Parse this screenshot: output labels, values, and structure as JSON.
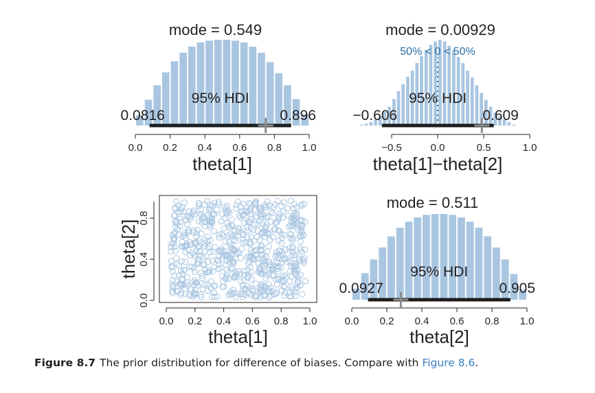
{
  "caption": {
    "label": "Figure 8.7",
    "text": "The prior distribution for difference of biases. Compare with ",
    "ref": "Figure 8.6",
    "end": "."
  },
  "colors": {
    "bar": "#a9c6e1",
    "hdi": "#1d1d1d",
    "mark": "#8a8a8a",
    "text": "#231f20",
    "compare": "#2b6fa4",
    "point": "#a9c6e1"
  },
  "chart_data": [
    {
      "id": "theta1",
      "type": "bar",
      "xlabel": "theta[1]",
      "xlim": [
        0,
        1
      ],
      "ticks": [
        "0.0",
        "0.2",
        "0.4",
        "0.6",
        "0.8",
        "1.0"
      ],
      "tick_values": [
        0,
        0.2,
        0.4,
        0.6,
        0.8,
        1.0
      ],
      "mode_label": "mode = 0.549",
      "hdi_label": "95% HDI",
      "hdi": [
        0.0816,
        0.896
      ],
      "hdi_low_label": "0.0816",
      "hdi_high_label": "0.896",
      "mark_x": 0.75,
      "bin_width": 0.05,
      "bins": [
        0.0,
        0.05,
        0.1,
        0.15,
        0.2,
        0.25,
        0.3,
        0.35,
        0.4,
        0.45,
        0.5,
        0.55,
        0.6,
        0.65,
        0.7,
        0.75,
        0.8,
        0.85,
        0.9,
        0.95
      ],
      "values": [
        0.12,
        0.3,
        0.47,
        0.62,
        0.75,
        0.85,
        0.92,
        0.97,
        0.99,
        1.0,
        1.0,
        0.99,
        0.97,
        0.92,
        0.85,
        0.74,
        0.61,
        0.47,
        0.31,
        0.13
      ]
    },
    {
      "id": "diff",
      "type": "bar",
      "xlabel": "theta[1]−theta[2]",
      "xlim": [
        -1,
        1
      ],
      "ticks": [
        "−0.5",
        "0.0",
        "0.5",
        "1.0"
      ],
      "tick_values": [
        -0.5,
        0,
        0.5,
        1.0
      ],
      "mode_label": "mode = 0.00929",
      "hdi_label": "95% HDI",
      "hdi": [
        -0.606,
        0.609
      ],
      "hdi_low_label": "−0.606",
      "hdi_high_label": "0.609",
      "compare_label": "50% < 0 < 50%",
      "compare_value": 0,
      "mark_x": 0.48,
      "bin_width": 0.05,
      "bins": [
        -0.85,
        -0.8,
        -0.75,
        -0.7,
        -0.65,
        -0.6,
        -0.55,
        -0.5,
        -0.45,
        -0.4,
        -0.35,
        -0.3,
        -0.25,
        -0.2,
        -0.15,
        -0.1,
        -0.05,
        0.0,
        0.05,
        0.1,
        0.15,
        0.2,
        0.25,
        0.3,
        0.35,
        0.4,
        0.45,
        0.5,
        0.55,
        0.6,
        0.65,
        0.7,
        0.75,
        0.8
      ],
      "values": [
        0.01,
        0.02,
        0.04,
        0.07,
        0.11,
        0.16,
        0.22,
        0.31,
        0.4,
        0.48,
        0.57,
        0.64,
        0.73,
        0.81,
        0.88,
        0.94,
        0.98,
        1.0,
        0.98,
        0.93,
        0.88,
        0.8,
        0.73,
        0.64,
        0.56,
        0.47,
        0.38,
        0.3,
        0.22,
        0.15,
        0.11,
        0.07,
        0.04,
        0.01
      ]
    },
    {
      "id": "scatter",
      "type": "scatter",
      "xlabel": "theta[1]",
      "ylabel": "theta[2]",
      "xlim": [
        0,
        1
      ],
      "ylim": [
        0,
        1
      ],
      "xticks": [
        "0.0",
        "0.2",
        "0.4",
        "0.6",
        "0.8",
        "1.0"
      ],
      "xtick_values": [
        0,
        0.2,
        0.4,
        0.6,
        0.8,
        1.0
      ],
      "yticks": [
        "0.0",
        "0.4",
        "0.8"
      ],
      "ytick_values": [
        0,
        0.4,
        0.8
      ],
      "n_points": 700
    },
    {
      "id": "theta2",
      "type": "bar",
      "xlabel": "theta[2]",
      "xlim": [
        0,
        1
      ],
      "ticks": [
        "0.0",
        "0.2",
        "0.4",
        "0.6",
        "0.8",
        "1.0"
      ],
      "tick_values": [
        0,
        0.2,
        0.4,
        0.6,
        0.8,
        1.0
      ],
      "mode_label": "mode = 0.511",
      "hdi_label": "95% HDI",
      "hdi": [
        0.0927,
        0.905
      ],
      "hdi_low_label": "0.0927",
      "hdi_high_label": "0.905",
      "mark_x": 0.28,
      "bin_width": 0.05,
      "bins": [
        0.0,
        0.05,
        0.1,
        0.15,
        0.2,
        0.25,
        0.3,
        0.35,
        0.4,
        0.45,
        0.5,
        0.55,
        0.6,
        0.65,
        0.7,
        0.75,
        0.8,
        0.85,
        0.9,
        0.95
      ],
      "values": [
        0.13,
        0.31,
        0.47,
        0.61,
        0.74,
        0.84,
        0.91,
        0.96,
        0.99,
        1.0,
        1.0,
        0.99,
        0.96,
        0.91,
        0.84,
        0.74,
        0.61,
        0.47,
        0.3,
        0.12
      ]
    }
  ]
}
